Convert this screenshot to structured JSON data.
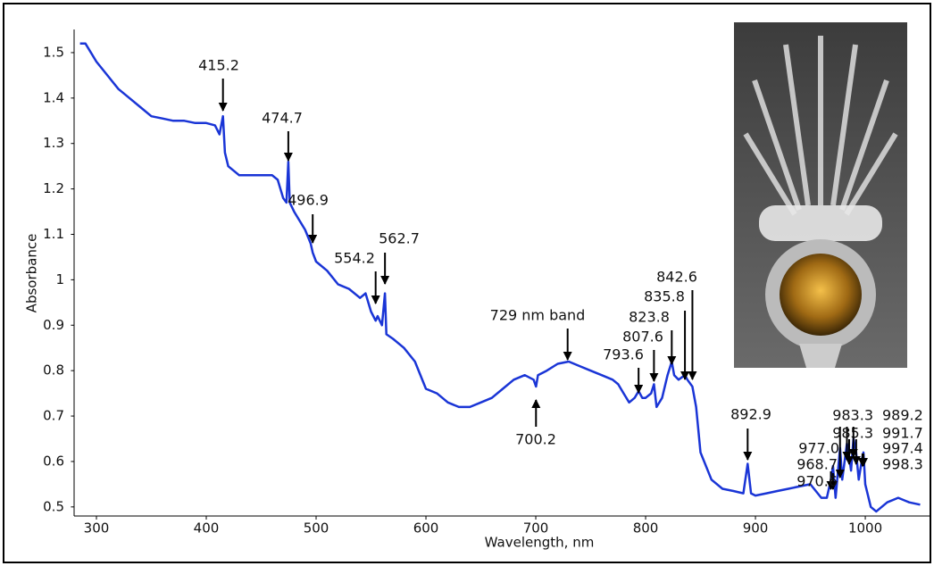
{
  "chart_data": {
    "type": "line",
    "x_label": "Wavelength, nm",
    "y_label": "Absorbance",
    "color": "#1a35d6",
    "xlim": [
      280,
      1055
    ],
    "ylim": [
      0.48,
      1.55
    ],
    "xticks": [
      300,
      400,
      500,
      600,
      700,
      800,
      900,
      1000
    ],
    "yticks": [
      0.5,
      0.6,
      0.7,
      0.8,
      0.9,
      1,
      1.1,
      1.2,
      1.3,
      1.4,
      1.5
    ],
    "x": [
      285,
      290,
      300,
      310,
      320,
      330,
      340,
      350,
      360,
      370,
      380,
      390,
      400,
      408,
      412,
      415.2,
      417,
      420,
      430,
      440,
      450,
      460,
      465,
      470,
      473,
      474.7,
      476,
      480,
      490,
      495,
      496.9,
      500,
      510,
      520,
      530,
      540,
      545,
      550,
      554.2,
      556,
      560,
      562.7,
      564,
      570,
      580,
      590,
      600,
      610,
      620,
      630,
      640,
      650,
      660,
      670,
      680,
      690,
      698,
      700.2,
      702,
      710,
      720,
      730,
      740,
      750,
      760,
      770,
      775,
      780,
      785,
      790,
      793.6,
      797,
      800,
      805,
      807.6,
      810,
      815,
      820,
      823.8,
      826,
      830,
      835.8,
      838,
      842.6,
      846,
      850,
      860,
      870,
      880,
      889,
      892.9,
      896,
      900,
      910,
      920,
      930,
      940,
      950,
      960,
      965,
      968.7,
      970.6,
      973,
      977.0,
      979,
      983.3,
      985.3,
      987,
      989.2,
      991.7,
      994,
      997.4,
      998.3,
      1000,
      1005,
      1010,
      1020,
      1030,
      1040,
      1050
    ],
    "values": [
      1.52,
      1.52,
      1.48,
      1.45,
      1.42,
      1.4,
      1.38,
      1.36,
      1.355,
      1.35,
      1.35,
      1.345,
      1.345,
      1.34,
      1.32,
      1.36,
      1.28,
      1.25,
      1.23,
      1.23,
      1.23,
      1.23,
      1.22,
      1.18,
      1.17,
      1.26,
      1.17,
      1.15,
      1.11,
      1.08,
      1.06,
      1.04,
      1.02,
      0.99,
      0.98,
      0.96,
      0.97,
      0.93,
      0.91,
      0.92,
      0.9,
      0.97,
      0.88,
      0.87,
      0.85,
      0.82,
      0.76,
      0.75,
      0.73,
      0.72,
      0.72,
      0.73,
      0.74,
      0.76,
      0.78,
      0.79,
      0.78,
      0.765,
      0.79,
      0.8,
      0.815,
      0.82,
      0.81,
      0.8,
      0.79,
      0.78,
      0.77,
      0.75,
      0.73,
      0.74,
      0.755,
      0.74,
      0.74,
      0.75,
      0.77,
      0.72,
      0.74,
      0.79,
      0.82,
      0.79,
      0.78,
      0.79,
      0.78,
      0.765,
      0.72,
      0.62,
      0.56,
      0.54,
      0.535,
      0.53,
      0.595,
      0.53,
      0.525,
      0.53,
      0.535,
      0.54,
      0.545,
      0.55,
      0.52,
      0.52,
      0.56,
      0.59,
      0.52,
      0.63,
      0.56,
      0.64,
      0.61,
      0.58,
      0.65,
      0.62,
      0.56,
      0.61,
      0.62,
      0.55,
      0.5,
      0.49,
      0.51,
      0.52,
      0.51,
      0.505
    ],
    "annotations": [
      {
        "text": "415.2",
        "x": 415.2
      },
      {
        "text": "474.7",
        "x": 474.7
      },
      {
        "text": "496.9",
        "x": 496.9
      },
      {
        "text": "554.2",
        "x": 554.2
      },
      {
        "text": "562.7",
        "x": 562.7
      },
      {
        "text": "729 nm band",
        "x": 729
      },
      {
        "text": "700.2",
        "x": 700.2
      },
      {
        "text": "793.6",
        "x": 793.6
      },
      {
        "text": "807.6",
        "x": 807.6
      },
      {
        "text": "823.8",
        "x": 823.8
      },
      {
        "text": "835.8",
        "x": 835.8
      },
      {
        "text": "842.6",
        "x": 842.6
      },
      {
        "text": "892.9",
        "x": 892.9
      },
      {
        "text": "968.7",
        "x": 968.7
      },
      {
        "text": "970.6",
        "x": 970.6
      },
      {
        "text": "977.0",
        "x": 977.0
      },
      {
        "text": "983.3",
        "x": 983.3
      },
      {
        "text": "985.3",
        "x": 985.3
      },
      {
        "text": "989.2",
        "x": 989.2
      },
      {
        "text": "991.7",
        "x": 991.7
      },
      {
        "text": "997.4",
        "x": 997.4
      },
      {
        "text": "998.3",
        "x": 998.3
      }
    ]
  }
}
